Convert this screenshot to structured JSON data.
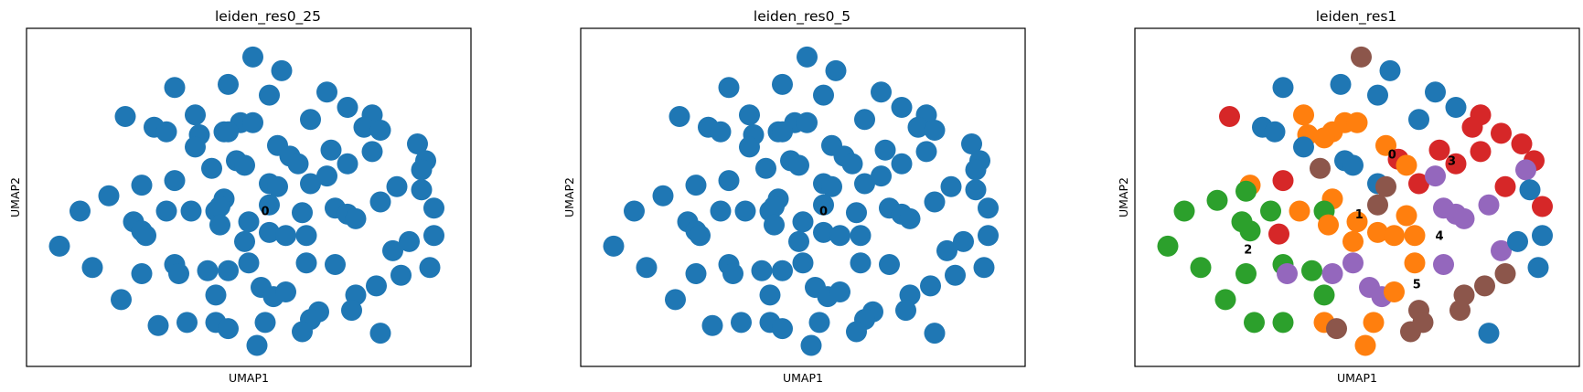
{
  "colors": {
    "0": "#1f77b4",
    "1": "#ff7f0e",
    "2": "#2ca02c",
    "3": "#d62728",
    "4": "#9467bd",
    "5": "#8c564b"
  },
  "chart_data": [
    {
      "type": "scatter",
      "title": "leiden_res0_25",
      "xlabel": "UMAP1",
      "ylabel": "UMAP2",
      "xlim": [
        0,
        100
      ],
      "ylim": [
        0,
        100
      ],
      "grid": false,
      "cluster_labels": [
        {
          "label": "0",
          "x": 54,
          "y": 45.5
        }
      ],
      "points": [
        [
          51,
          96,
          0
        ],
        [
          58,
          91.5,
          0
        ],
        [
          32,
          86,
          0
        ],
        [
          45,
          87,
          0
        ],
        [
          55,
          83.5,
          0
        ],
        [
          69,
          84.5,
          0
        ],
        [
          74,
          79.5,
          0
        ],
        [
          20,
          76.5,
          0
        ],
        [
          37,
          77,
          0
        ],
        [
          80,
          77,
          0
        ],
        [
          27,
          73,
          0
        ],
        [
          30,
          71.5,
          0
        ],
        [
          44,
          71.5,
          0
        ],
        [
          48,
          74.5,
          0
        ],
        [
          51,
          74.5,
          0
        ],
        [
          65,
          75.5,
          0
        ],
        [
          78,
          73,
          0
        ],
        [
          82,
          72,
          0
        ],
        [
          38,
          70.5,
          0
        ],
        [
          45,
          71.5,
          0
        ],
        [
          37,
          66.5,
          0
        ],
        [
          57,
          67,
          0
        ],
        [
          70,
          65.5,
          0
        ],
        [
          91,
          67.5,
          0
        ],
        [
          80,
          65,
          0
        ],
        [
          47,
          62,
          0
        ],
        [
          49,
          60.5,
          0
        ],
        [
          60,
          63.5,
          0
        ],
        [
          62,
          61,
          0
        ],
        [
          74,
          61,
          0
        ],
        [
          93,
          62,
          0
        ],
        [
          92,
          59,
          0
        ],
        [
          41,
          59.5,
          0
        ],
        [
          32,
          55.5,
          0
        ],
        [
          24,
          54,
          0
        ],
        [
          55,
          54.5,
          0
        ],
        [
          57,
          53.5,
          0
        ],
        [
          65,
          54.5,
          0
        ],
        [
          69,
          57,
          0
        ],
        [
          86,
          53.5,
          0
        ],
        [
          92,
          52.5,
          0
        ],
        [
          16,
          50.5,
          0
        ],
        [
          44,
          49.5,
          0
        ],
        [
          55,
          47.5,
          0
        ],
        [
          82,
          48.5,
          0
        ],
        [
          9,
          45.5,
          0
        ],
        [
          30,
          45.5,
          0
        ],
        [
          36,
          45.5,
          0
        ],
        [
          42,
          45.5,
          0
        ],
        [
          43,
          47,
          0
        ],
        [
          63,
          45,
          0
        ],
        [
          71,
          46.5,
          0
        ],
        [
          74,
          44.5,
          0
        ],
        [
          76,
          43,
          0
        ],
        [
          95,
          46.5,
          0
        ],
        [
          22,
          42,
          0
        ],
        [
          24,
          39,
          0
        ],
        [
          43,
          41,
          0
        ],
        [
          50,
          42,
          0
        ],
        [
          55,
          38.5,
          0
        ],
        [
          59,
          37.5,
          0
        ],
        [
          4,
          34,
          0
        ],
        [
          25,
          37.5,
          0
        ],
        [
          49,
          35.5,
          0
        ],
        [
          64,
          37.5,
          0
        ],
        [
          85,
          32.5,
          0
        ],
        [
          89,
          35.5,
          0
        ],
        [
          95,
          37.5,
          0
        ],
        [
          12,
          27,
          0
        ],
        [
          32,
          28,
          0
        ],
        [
          33,
          25,
          0
        ],
        [
          40,
          26,
          0
        ],
        [
          45,
          26,
          0
        ],
        [
          50,
          28.5,
          0
        ],
        [
          64,
          28.5,
          0
        ],
        [
          71,
          28,
          0
        ],
        [
          87,
          24.5,
          0
        ],
        [
          94,
          27,
          0
        ],
        [
          24,
          25,
          0
        ],
        [
          81,
          21,
          0
        ],
        [
          53,
          20.5,
          0
        ],
        [
          56,
          17.5,
          0
        ],
        [
          59,
          19,
          0
        ],
        [
          42,
          18,
          0
        ],
        [
          19,
          16.5,
          0
        ],
        [
          76,
          18,
          0
        ],
        [
          67,
          12.5,
          0
        ],
        [
          75,
          13,
          0
        ],
        [
          28,
          8,
          0
        ],
        [
          35,
          9,
          0
        ],
        [
          42,
          9,
          0
        ],
        [
          45,
          7,
          0
        ],
        [
          54,
          9,
          0
        ],
        [
          65,
          10,
          0
        ],
        [
          63,
          6,
          0
        ],
        [
          82,
          5.5,
          0
        ],
        [
          52,
          1.5,
          0
        ]
      ]
    },
    {
      "type": "scatter",
      "title": "leiden_res0_5",
      "xlabel": "UMAP1",
      "ylabel": "UMAP2",
      "xlim": [
        0,
        100
      ],
      "ylim": [
        0,
        100
      ],
      "grid": false,
      "cluster_labels": [
        {
          "label": "0",
          "x": 55,
          "y": 45.5
        }
      ],
      "points": [
        [
          51,
          96,
          0
        ],
        [
          58,
          91.5,
          0
        ],
        [
          32,
          86,
          0
        ],
        [
          45,
          87,
          0
        ],
        [
          55,
          83.5,
          0
        ],
        [
          69,
          84.5,
          0
        ],
        [
          74,
          79.5,
          0
        ],
        [
          20,
          76.5,
          0
        ],
        [
          37,
          77,
          0
        ],
        [
          80,
          77,
          0
        ],
        [
          27,
          73,
          0
        ],
        [
          30,
          71.5,
          0
        ],
        [
          44,
          71.5,
          0
        ],
        [
          48,
          74.5,
          0
        ],
        [
          51,
          74.5,
          0
        ],
        [
          65,
          75.5,
          0
        ],
        [
          78,
          73,
          0
        ],
        [
          82,
          72,
          0
        ],
        [
          38,
          70.5,
          0
        ],
        [
          45,
          71.5,
          0
        ],
        [
          37,
          66.5,
          0
        ],
        [
          57,
          67,
          0
        ],
        [
          70,
          65.5,
          0
        ],
        [
          91,
          67.5,
          0
        ],
        [
          80,
          65,
          0
        ],
        [
          47,
          62,
          0
        ],
        [
          49,
          60.5,
          0
        ],
        [
          60,
          63.5,
          0
        ],
        [
          62,
          61,
          0
        ],
        [
          74,
          61,
          0
        ],
        [
          93,
          62,
          0
        ],
        [
          92,
          59,
          0
        ],
        [
          41,
          59.5,
          0
        ],
        [
          32,
          55.5,
          0
        ],
        [
          24,
          54,
          0
        ],
        [
          55,
          54.5,
          0
        ],
        [
          57,
          53.5,
          0
        ],
        [
          65,
          54.5,
          0
        ],
        [
          69,
          57,
          0
        ],
        [
          86,
          53.5,
          0
        ],
        [
          92,
          52.5,
          0
        ],
        [
          16,
          50.5,
          0
        ],
        [
          44,
          49.5,
          0
        ],
        [
          55,
          47.5,
          0
        ],
        [
          82,
          48.5,
          0
        ],
        [
          9,
          45.5,
          0
        ],
        [
          30,
          45.5,
          0
        ],
        [
          36,
          45.5,
          0
        ],
        [
          42,
          45.5,
          0
        ],
        [
          43,
          47,
          0
        ],
        [
          63,
          45,
          0
        ],
        [
          71,
          46.5,
          0
        ],
        [
          74,
          44.5,
          0
        ],
        [
          76,
          43,
          0
        ],
        [
          95,
          46.5,
          0
        ],
        [
          22,
          42,
          0
        ],
        [
          24,
          39,
          0
        ],
        [
          43,
          41,
          0
        ],
        [
          50,
          42,
          0
        ],
        [
          55,
          38.5,
          0
        ],
        [
          59,
          37.5,
          0
        ],
        [
          4,
          34,
          0
        ],
        [
          25,
          37.5,
          0
        ],
        [
          49,
          35.5,
          0
        ],
        [
          64,
          37.5,
          0
        ],
        [
          85,
          32.5,
          0
        ],
        [
          89,
          35.5,
          0
        ],
        [
          95,
          37.5,
          0
        ],
        [
          12,
          27,
          0
        ],
        [
          32,
          28,
          0
        ],
        [
          33,
          25,
          0
        ],
        [
          40,
          26,
          0
        ],
        [
          45,
          26,
          0
        ],
        [
          50,
          28.5,
          0
        ],
        [
          64,
          28.5,
          0
        ],
        [
          71,
          28,
          0
        ],
        [
          87,
          24.5,
          0
        ],
        [
          94,
          27,
          0
        ],
        [
          24,
          25,
          0
        ],
        [
          81,
          21,
          0
        ],
        [
          53,
          20.5,
          0
        ],
        [
          56,
          17.5,
          0
        ],
        [
          59,
          19,
          0
        ],
        [
          42,
          18,
          0
        ],
        [
          19,
          16.5,
          0
        ],
        [
          76,
          18,
          0
        ],
        [
          67,
          12.5,
          0
        ],
        [
          75,
          13,
          0
        ],
        [
          28,
          8,
          0
        ],
        [
          35,
          9,
          0
        ],
        [
          42,
          9,
          0
        ],
        [
          45,
          7,
          0
        ],
        [
          54,
          9,
          0
        ],
        [
          65,
          10,
          0
        ],
        [
          63,
          6,
          0
        ],
        [
          82,
          5.5,
          0
        ],
        [
          52,
          1.5,
          0
        ]
      ]
    },
    {
      "type": "scatter",
      "title": "leiden_res1",
      "xlabel": "UMAP1",
      "ylabel": "UMAP2",
      "xlim": [
        0,
        100
      ],
      "ylim": [
        0,
        100
      ],
      "grid": false,
      "cluster_labels": [
        {
          "label": "0",
          "x": 58.5,
          "y": 64
        },
        {
          "label": "3",
          "x": 73,
          "y": 62
        },
        {
          "label": "1",
          "x": 50.5,
          "y": 44.5
        },
        {
          "label": "4",
          "x": 70,
          "y": 37.5
        },
        {
          "label": "2",
          "x": 23.5,
          "y": 33
        },
        {
          "label": "5",
          "x": 64.5,
          "y": 21.5
        }
      ],
      "points": [
        [
          51,
          96,
          5
        ],
        [
          58,
          91.5,
          0
        ],
        [
          32,
          86,
          0
        ],
        [
          46,
          87,
          0
        ],
        [
          55,
          83.5,
          0
        ],
        [
          69,
          84.5,
          0
        ],
        [
          74,
          79.5,
          0
        ],
        [
          19,
          76.5,
          3
        ],
        [
          37,
          77,
          1
        ],
        [
          80,
          77,
          3
        ],
        [
          27,
          73,
          0
        ],
        [
          30,
          71.5,
          0
        ],
        [
          44,
          71.5,
          1
        ],
        [
          47,
          74.5,
          1
        ],
        [
          50,
          74.5,
          1
        ],
        [
          65,
          75.5,
          0
        ],
        [
          78,
          73,
          3
        ],
        [
          85,
          71,
          3
        ],
        [
          38,
          70.5,
          1
        ],
        [
          42,
          69.5,
          1
        ],
        [
          37,
          66.5,
          0
        ],
        [
          57,
          67,
          1
        ],
        [
          70,
          65.5,
          3
        ],
        [
          90,
          67.5,
          3
        ],
        [
          80,
          65,
          3
        ],
        [
          47,
          62,
          0
        ],
        [
          49,
          60.5,
          0
        ],
        [
          60,
          62.5,
          3
        ],
        [
          62,
          60.5,
          1
        ],
        [
          74,
          61,
          3
        ],
        [
          93,
          62,
          3
        ],
        [
          91,
          59,
          4
        ],
        [
          41,
          59.5,
          5
        ],
        [
          32,
          55.5,
          3
        ],
        [
          24,
          54,
          1
        ],
        [
          55,
          54.5,
          0
        ],
        [
          57,
          53.5,
          5
        ],
        [
          65,
          54.5,
          3
        ],
        [
          69,
          57,
          4
        ],
        [
          86,
          53.5,
          3
        ],
        [
          92,
          52.5,
          0
        ],
        [
          23,
          52,
          2
        ],
        [
          44,
          49.5,
          1
        ],
        [
          55,
          47.5,
          5
        ],
        [
          95,
          47,
          3
        ],
        [
          8,
          45.5,
          2
        ],
        [
          16,
          49,
          2
        ],
        [
          29,
          45.5,
          2
        ],
        [
          36,
          45.5,
          1
        ],
        [
          42,
          45.5,
          2
        ],
        [
          62,
          44,
          1
        ],
        [
          71,
          46.5,
          4
        ],
        [
          74,
          44.5,
          4
        ],
        [
          76,
          43,
          4
        ],
        [
          82,
          47.5,
          4
        ],
        [
          22,
          42,
          2
        ],
        [
          24,
          39,
          2
        ],
        [
          43,
          41,
          1
        ],
        [
          50,
          42,
          1
        ],
        [
          55,
          38.5,
          1
        ],
        [
          59,
          37.5,
          1
        ],
        [
          4,
          34,
          2
        ],
        [
          31,
          38,
          3
        ],
        [
          49,
          35.5,
          1
        ],
        [
          64,
          37.5,
          1
        ],
        [
          85,
          32.5,
          4
        ],
        [
          89,
          35.5,
          0
        ],
        [
          95,
          37.5,
          0
        ],
        [
          12,
          27,
          2
        ],
        [
          32,
          28,
          2
        ],
        [
          33,
          25,
          4
        ],
        [
          39,
          26,
          2
        ],
        [
          44,
          25,
          4
        ],
        [
          49,
          28.5,
          4
        ],
        [
          64,
          28.5,
          1
        ],
        [
          71,
          28,
          4
        ],
        [
          86,
          25,
          5
        ],
        [
          94,
          27,
          0
        ],
        [
          23,
          25,
          2
        ],
        [
          81,
          21,
          5
        ],
        [
          53,
          20.5,
          4
        ],
        [
          56,
          17.5,
          4
        ],
        [
          59,
          19,
          1
        ],
        [
          42,
          18,
          2
        ],
        [
          18,
          16.5,
          2
        ],
        [
          76,
          18,
          5
        ],
        [
          65,
          13,
          5
        ],
        [
          75,
          13,
          5
        ],
        [
          25,
          9,
          2
        ],
        [
          32,
          9,
          2
        ],
        [
          42,
          9,
          1
        ],
        [
          45,
          7,
          5
        ],
        [
          54,
          9,
          1
        ],
        [
          66,
          9,
          5
        ],
        [
          63,
          6,
          5
        ],
        [
          82,
          5.5,
          0
        ],
        [
          52,
          1.5,
          1
        ]
      ]
    }
  ]
}
